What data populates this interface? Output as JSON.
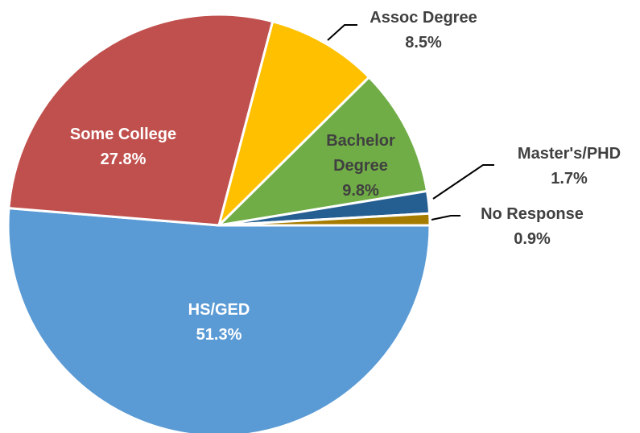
{
  "chart_data": {
    "type": "pie",
    "categories": [
      "HS/GED",
      "Some College",
      "Assoc Degree",
      "Bachelor Degree",
      "Master's/PHD",
      "No Response"
    ],
    "values": [
      51.3,
      27.8,
      8.5,
      9.8,
      1.7,
      0.9
    ],
    "value_labels": [
      "51.3%",
      "27.8%",
      "8.5%",
      "9.8%",
      "1.7%",
      "0.9%"
    ],
    "colors": [
      "#5b9bd5",
      "#c0504d",
      "#ffc000",
      "#70ad47",
      "#255e91",
      "#a67c00"
    ]
  }
}
